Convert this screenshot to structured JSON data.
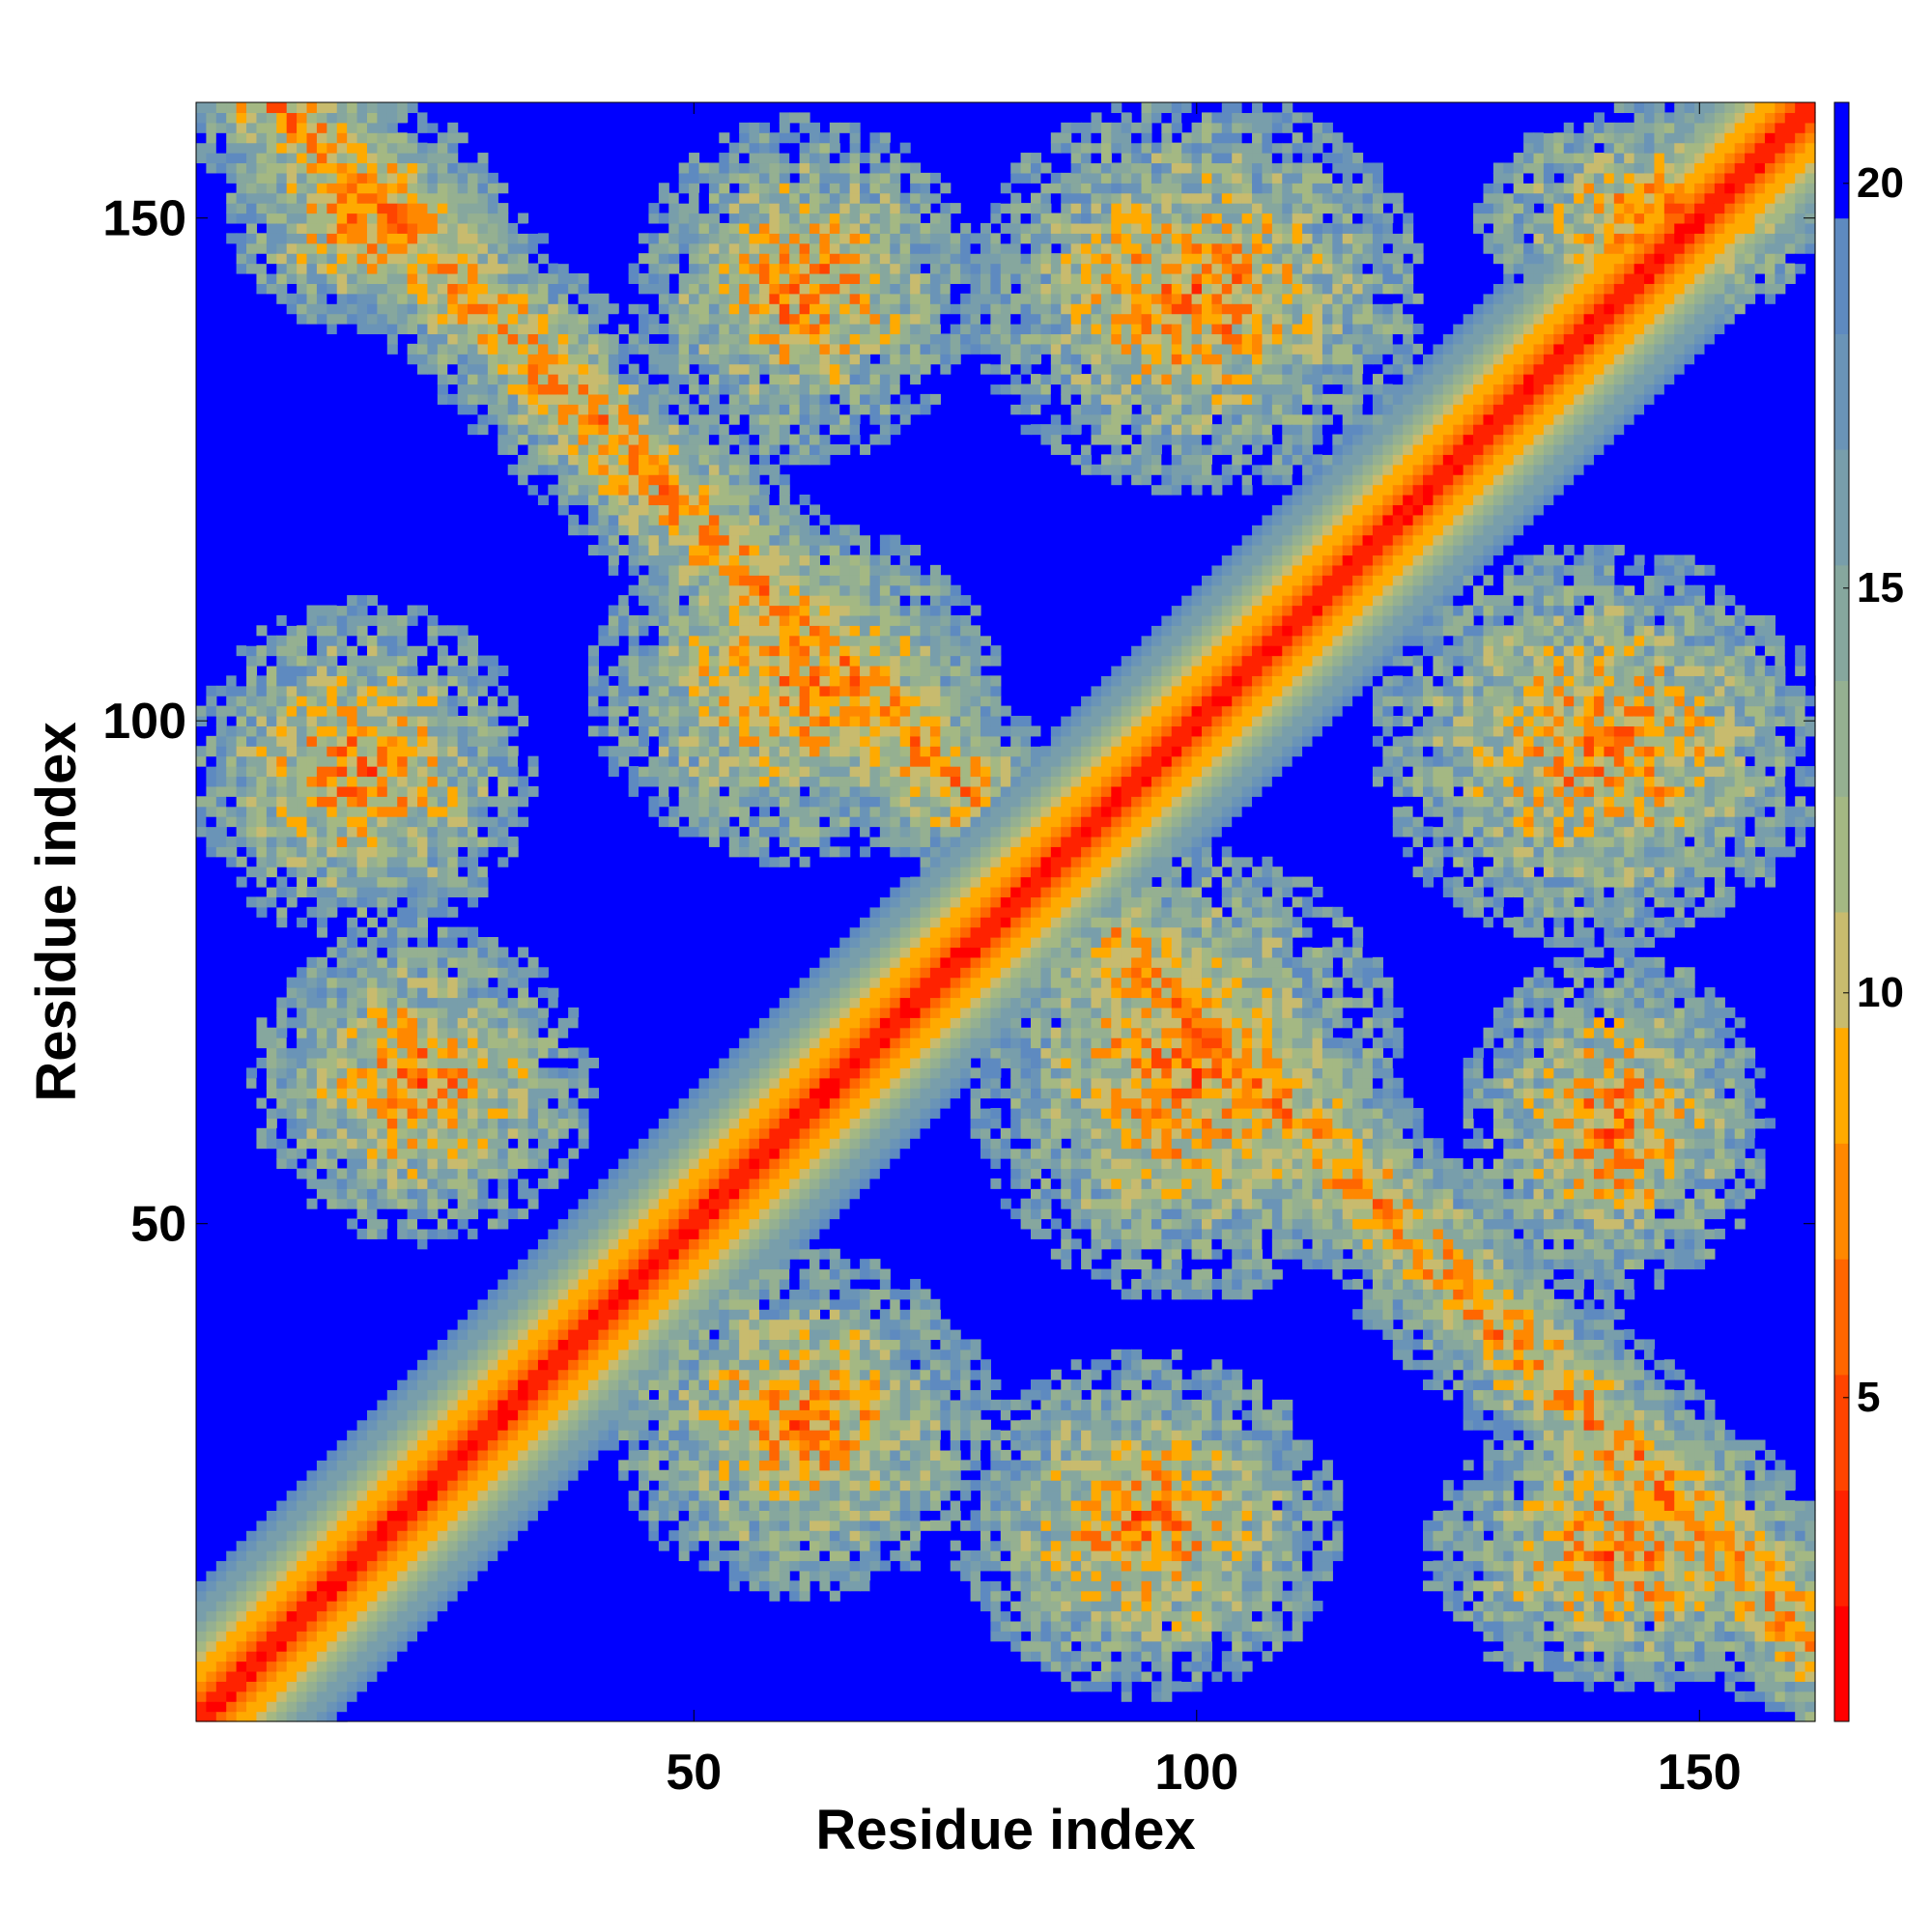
{
  "chart_data": {
    "type": "heatmap",
    "title": "",
    "xlabel": "Residue index",
    "ylabel": "Residue index",
    "n_residues": 161,
    "xlim": [
      1,
      161
    ],
    "ylim": [
      1,
      161
    ],
    "x_ticks": [
      50,
      100,
      150
    ],
    "y_ticks": [
      50,
      100,
      150
    ],
    "colorbar": {
      "range": [
        1,
        21
      ],
      "ticks": [
        5,
        10,
        15,
        20
      ],
      "colors": [
        "#ff0000",
        "#ff2200",
        "#ff4400",
        "#ff6600",
        "#ff8800",
        "#ffaa00",
        "#c8bb6e",
        "#a4b883",
        "#95b091",
        "#86a79e",
        "#789eab",
        "#6a94b7",
        "#5e8ac0",
        "#0000ff"
      ]
    },
    "contact_regions": [
      {
        "x_range": [
          5,
          30
        ],
        "y_range": [
          140,
          160
        ],
        "note": "off-diagonal cluster"
      },
      {
        "x_range": [
          46,
          76
        ],
        "y_range": [
          128,
          158
        ]
      },
      {
        "x_range": [
          80,
          120
        ],
        "y_range": [
          125,
          160
        ]
      },
      {
        "x_range": [
          130,
          160
        ],
        "y_range": [
          140,
          160
        ]
      },
      {
        "x_range": [
          2,
          32
        ],
        "y_range": [
          80,
          110
        ]
      },
      {
        "x_range": [
          42,
          78
        ],
        "y_range": [
          88,
          118
        ]
      },
      {
        "x_range": [
          120,
          160
        ],
        "y_range": [
          80,
          115
        ]
      },
      {
        "x_range": [
          8,
          38
        ],
        "y_range": [
          50,
          78
        ]
      },
      {
        "x_range": [
          80,
          118
        ],
        "y_range": [
          45,
          85
        ]
      },
      {
        "x_range": [
          128,
          155
        ],
        "y_range": [
          45,
          75
        ]
      },
      {
        "x_range": [
          44,
          78
        ],
        "y_range": [
          15,
          45
        ]
      },
      {
        "x_range": [
          78,
          112
        ],
        "y_range": [
          5,
          35
        ]
      },
      {
        "x_range": [
          125,
          160
        ],
        "y_range": [
          5,
          30
        ]
      }
    ]
  }
}
